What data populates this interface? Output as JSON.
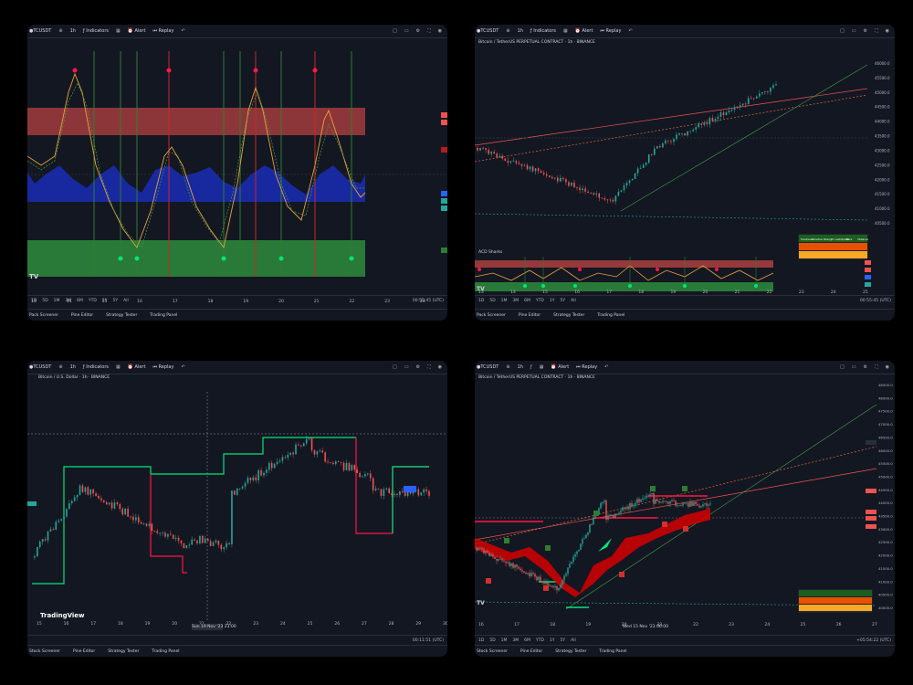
{
  "panels": [
    {
      "toolbar": {
        "symbol": "●TCUSDT",
        "interval": "1h",
        "indicators": "Indicators",
        "alert": "Alert",
        "replay": "Replay"
      },
      "header_lines": [],
      "xticks": [
        "13",
        "14",
        "15",
        "16",
        "17",
        "18",
        "19",
        "20",
        "21",
        "22",
        "23",
        "24"
      ],
      "yticks": [],
      "bottom_panel": [
        "Pack Screener",
        "Pine Editor",
        "Strategy Tester",
        "Trading Panel"
      ],
      "timeframes": [
        "1D",
        "5D",
        "1M",
        "3M",
        "6M",
        "YTD",
        "1Y",
        "5Y",
        "All"
      ],
      "clock": "00:55:45 (UTC)",
      "logo": "TV"
    },
    {
      "toolbar": {
        "symbol": "●TCUSDT",
        "interval": "1h",
        "indicators": "Indicators",
        "alert": "Alert",
        "replay": "Replay"
      },
      "header_lines": [
        "Bitcoin / TetherUS PERPETUAL CONTRACT · 1h · BINANCE"
      ],
      "xticks": [
        "13",
        "14",
        "15",
        "16",
        "17",
        "18",
        "19",
        "20",
        "21",
        "22",
        "23",
        "24",
        "25"
      ],
      "yticks": [
        "46000.0",
        "45500.0",
        "45000.0",
        "44500.0",
        "44000.0",
        "43500.0",
        "43000.0",
        "42500.0",
        "42000.0",
        "41500.0",
        "41000.0",
        "40500.0"
      ],
      "sub_label": "ACD Sharks",
      "bottom_panel": [
        "Pack Screener",
        "Pine Editor",
        "Strategy Tester",
        "Trading Panel"
      ],
      "timeframes": [
        "1D",
        "5D",
        "1M",
        "3M",
        "6M",
        "YTD",
        "1Y",
        "5Y",
        "All"
      ],
      "clock": "00:55:45 (UTC)",
      "logo": "TV",
      "table_head": [
        "Trend/Loss",
        "Direction",
        "Strength",
        "Last/Update",
        "Price",
        "Distance"
      ]
    },
    {
      "toolbar": {
        "symbol": "●TCUSDT",
        "interval": "1h",
        "indicators": "Indicators",
        "alert": "Alert",
        "replay": "Replay"
      },
      "header_lines": [
        "Bitcoin / U.S. Dollar · 1h · BINANCE"
      ],
      "xticks": [
        "15",
        "16",
        "17",
        "18",
        "19",
        "20",
        "21",
        "22",
        "23",
        "24",
        "25",
        "26",
        "27",
        "28",
        "29",
        "30"
      ],
      "date_tag": "Sun 19 Nov '23   23:00",
      "logo_text": "TradingView",
      "bottom_panel": [
        "Stock Screener",
        "Pine Editor",
        "Strategy Tester",
        "Trading Panel"
      ],
      "timeframes": [
        "1D",
        "5D",
        "1M",
        "3M",
        "6M",
        "YTD",
        "1Y",
        "5Y",
        "All"
      ],
      "clock": "00:11:51 (UTC)"
    },
    {
      "toolbar": {
        "symbol": "●TCUSDT",
        "interval": "1h",
        "indicators": "",
        "alert": "Alert",
        "replay": "Replay"
      },
      "header_lines": [
        "Bitcoin / TetherUS PERPETUAL CONTRACT · 1h · BINANCE"
      ],
      "xticks": [
        "16",
        "17",
        "18",
        "19",
        "20",
        "21",
        "22",
        "23",
        "24",
        "25",
        "26",
        "27"
      ],
      "yticks": [
        "48500.0",
        "48000.0",
        "47500.0",
        "47000.0",
        "46500.0",
        "46000.0",
        "45500.0",
        "45000.0",
        "44500.0",
        "44000.0",
        "43500.0",
        "43000.0",
        "42500.0",
        "42000.0",
        "41500.0",
        "41000.0",
        "40500.0",
        "40000.0"
      ],
      "date_tag": "Wed 15 Nov '23   06:00",
      "bottom_panel": [
        "Stock Screener",
        "Pine Editor",
        "Strategy Tester",
        "Trading Panel"
      ],
      "timeframes": [
        "1D",
        "5D",
        "1M",
        "3M",
        "6M",
        "YTD",
        "1Y",
        "5Y",
        "All"
      ],
      "clock": "+05:54:22 (UTC)",
      "logo": "TV"
    }
  ],
  "colors": {
    "bg": "#131722",
    "grid": "#2a2e39",
    "up": "#26a69a",
    "down": "#ef5350",
    "green": "#1e8e3e",
    "red": "#c62828",
    "blue": "#2962ff"
  }
}
